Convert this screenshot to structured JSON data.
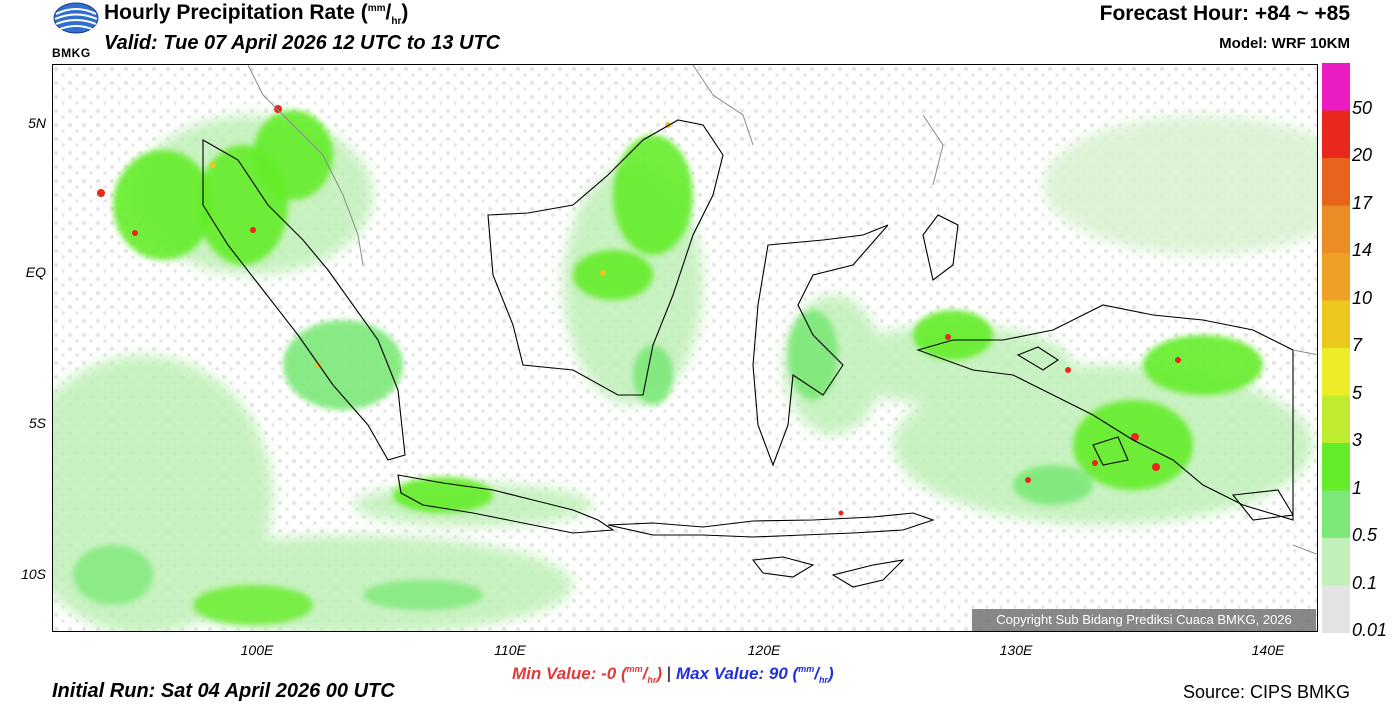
{
  "header": {
    "logo_text": "BMKG",
    "title": "Hourly Precipitation Rate",
    "unit_sup": "mm",
    "unit_sub": "hr",
    "valid": "Valid: Tue 07 April 2026 12 UTC to 13 UTC",
    "forecast_hour": "Forecast Hour: +84 ~ +85",
    "model": "Model: WRF 10KM"
  },
  "map": {
    "lat_labels": [
      "5N",
      "EQ",
      "5S",
      "10S"
    ],
    "lon_labels": [
      "100E",
      "110E",
      "120E",
      "130E",
      "140E"
    ],
    "copyright": "Copyright Sub Bidang Prediksi Cuaca BMKG, 2026"
  },
  "colorbar": {
    "labels": [
      "50",
      "20",
      "17",
      "14",
      "10",
      "7",
      "5",
      "3",
      "1",
      "0.5",
      "0.1",
      "0.01"
    ],
    "colors": [
      "#e81cc0",
      "#e8281c",
      "#e8641c",
      "#ec8c24",
      "#eca024",
      "#ecc81c",
      "#ecec28",
      "#c0ec30",
      "#64ec28",
      "#7ce878",
      "#c0f0b8",
      "#e4e4e4"
    ]
  },
  "stats": {
    "min_label": "Min Value:",
    "min_value": "-0",
    "max_label": "Max Value:",
    "max_value": "90",
    "unit_sup": "mm",
    "unit_sub": "hr",
    "separator": "|"
  },
  "footer": {
    "initial_run": "Initial Run: Sat 04 April 2026 00 UTC",
    "source": "Source: CIPS BMKG"
  }
}
